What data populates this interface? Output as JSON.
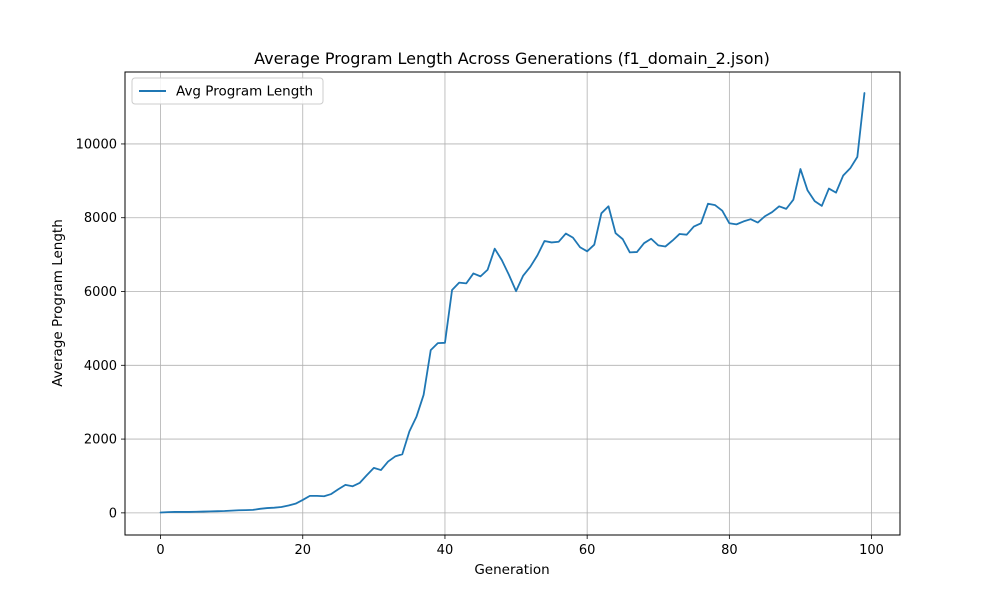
{
  "chart_data": {
    "type": "line",
    "title": "Average Program Length Across Generations (f1_domain_2.json)",
    "xlabel": "Generation",
    "ylabel": "Average Program Length",
    "xlim": [
      -5,
      104
    ],
    "ylim": [
      -600,
      11950
    ],
    "xticks": [
      0,
      20,
      40,
      60,
      80,
      100
    ],
    "yticks": [
      0,
      2000,
      4000,
      6000,
      8000,
      10000
    ],
    "grid": true,
    "legend_position": "upper left",
    "series": [
      {
        "name": "Avg Program Length",
        "color": "#1f77b4",
        "x": [
          0,
          1,
          2,
          3,
          4,
          5,
          6,
          7,
          8,
          9,
          10,
          11,
          12,
          13,
          14,
          15,
          16,
          17,
          18,
          19,
          20,
          21,
          22,
          23,
          24,
          25,
          26,
          27,
          28,
          29,
          30,
          31,
          32,
          33,
          34,
          35,
          36,
          37,
          38,
          39,
          40,
          41,
          42,
          43,
          44,
          45,
          46,
          47,
          48,
          49,
          50,
          51,
          52,
          53,
          54,
          55,
          56,
          57,
          58,
          59,
          60,
          61,
          62,
          63,
          64,
          65,
          66,
          67,
          68,
          69,
          70,
          71,
          72,
          73,
          74,
          75,
          76,
          77,
          78,
          79,
          80,
          81,
          82,
          83,
          84,
          85,
          86,
          87,
          88,
          89,
          90,
          91,
          92,
          93,
          94,
          95,
          96,
          97,
          98,
          99
        ],
        "y": [
          10,
          20,
          25,
          25,
          25,
          30,
          35,
          40,
          45,
          50,
          60,
          70,
          75,
          80,
          110,
          130,
          140,
          160,
          200,
          250,
          350,
          460,
          460,
          450,
          510,
          640,
          760,
          720,
          810,
          1020,
          1220,
          1160,
          1390,
          1530,
          1590,
          2210,
          2610,
          3200,
          4410,
          4600,
          4610,
          6040,
          6240,
          6220,
          6490,
          6410,
          6590,
          7160,
          6850,
          6450,
          6010,
          6430,
          6670,
          6980,
          7370,
          7330,
          7350,
          7570,
          7460,
          7200,
          7090,
          7270,
          8120,
          8310,
          7580,
          7420,
          7060,
          7070,
          7310,
          7430,
          7250,
          7220,
          7380,
          7560,
          7540,
          7760,
          7850,
          8380,
          8340,
          8190,
          7850,
          7820,
          7900,
          7960,
          7870,
          8040,
          8150,
          8310,
          8240,
          8490,
          9320,
          8740,
          8450,
          8320,
          8790,
          8680,
          9140,
          9340,
          9650,
          11380
        ]
      }
    ]
  }
}
